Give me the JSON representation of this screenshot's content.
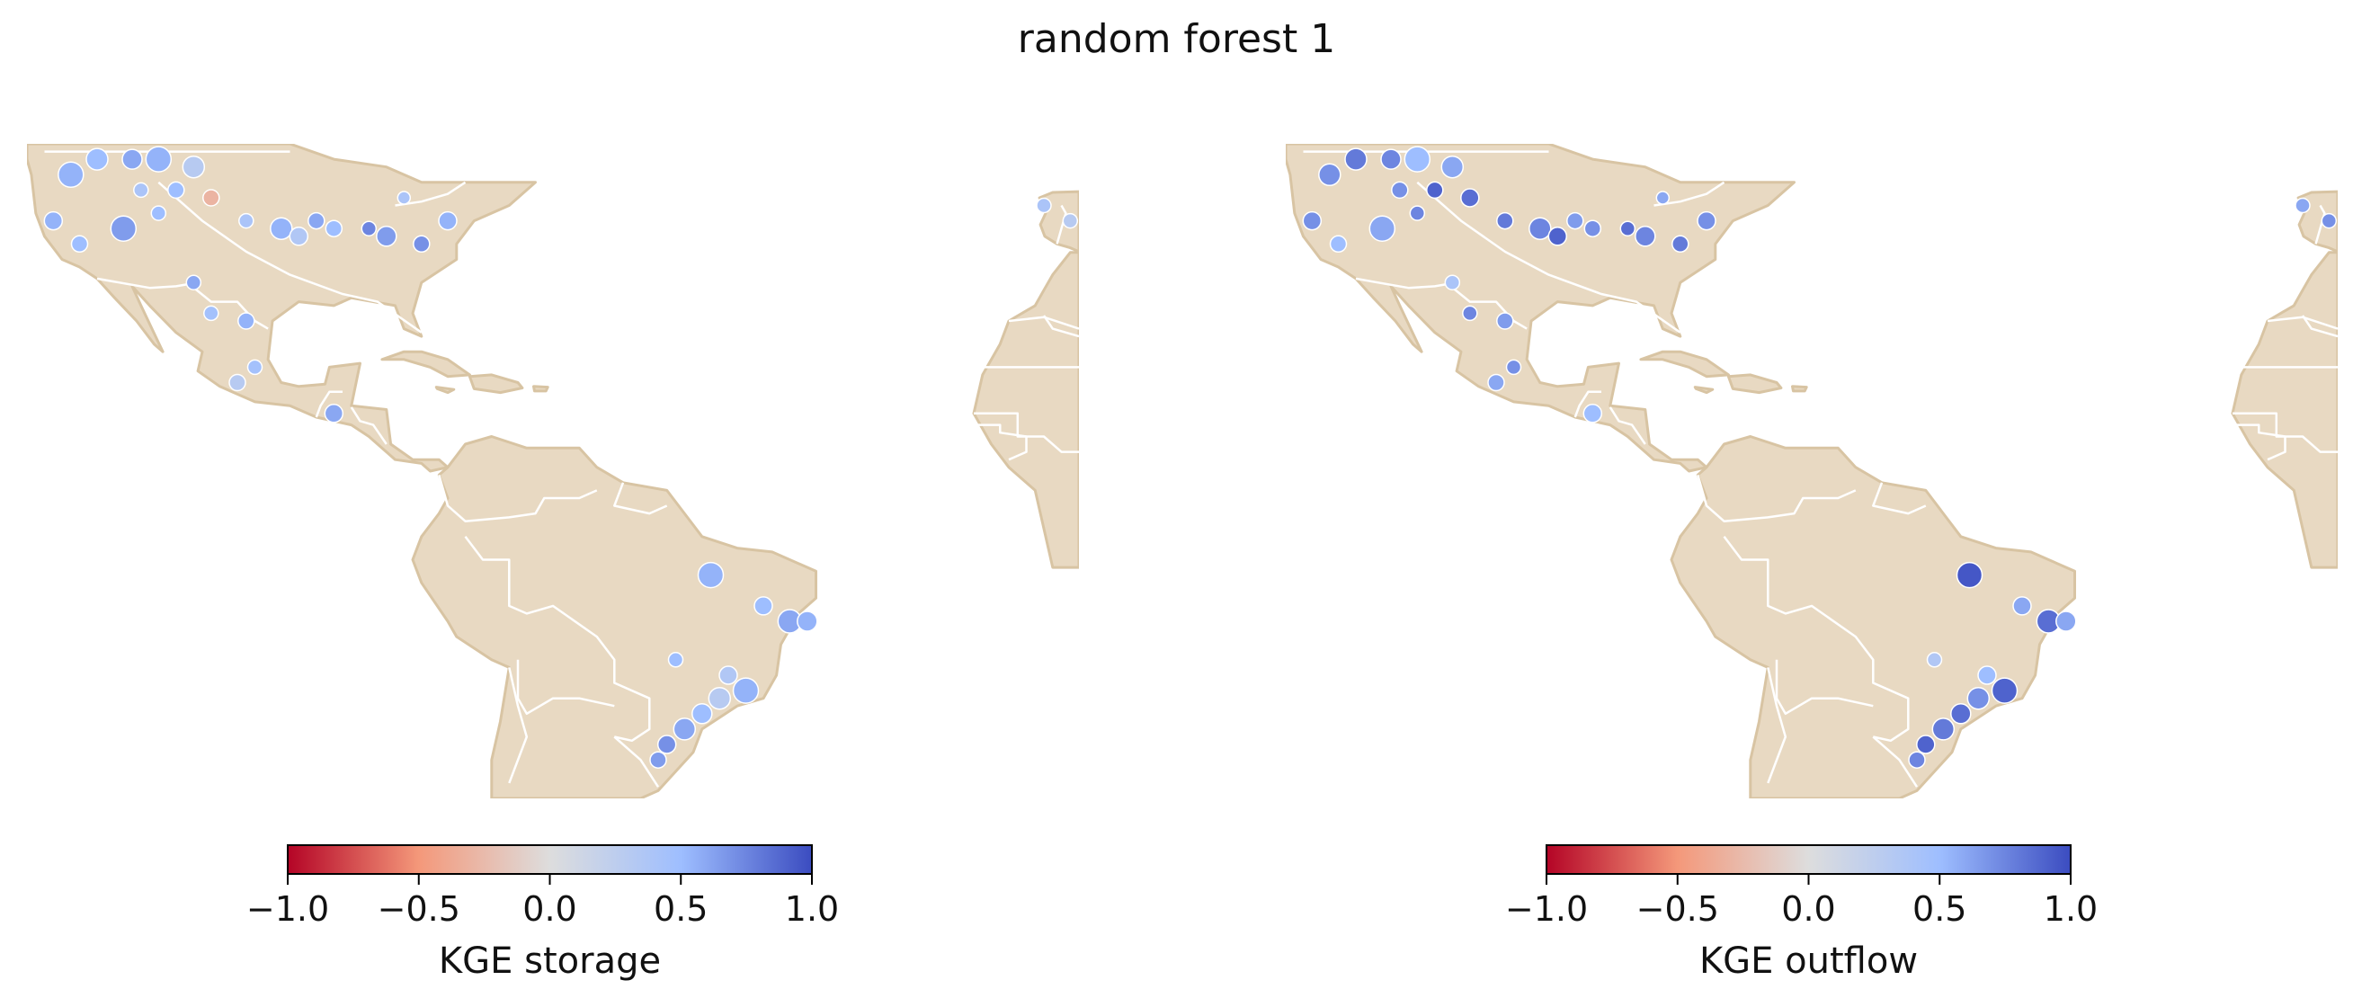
{
  "chart_data": {
    "type": "scatter",
    "title": "random forest 1",
    "panels": [
      {
        "colorbar_label": "KGE storage",
        "colorbar_range": [
          -1.0,
          1.0
        ],
        "colorbar_ticks": [
          "−1.0",
          "−0.5",
          "0.0",
          "0.5",
          "1.0"
        ],
        "colormap": "coolwarm",
        "x_unit": "longitude",
        "y_unit": "latitude",
        "xlim": [
          -125,
          -5
        ],
        "ylim": [
          -35,
          50
        ],
        "points": [
          {
            "lon": -120,
            "lat": 46,
            "v": 0.55,
            "s": 14
          },
          {
            "lon": -117,
            "lat": 48,
            "v": 0.5,
            "s": 12
          },
          {
            "lon": -113,
            "lat": 48,
            "v": 0.6,
            "s": 11
          },
          {
            "lon": -110,
            "lat": 48,
            "v": 0.55,
            "s": 14
          },
          {
            "lon": -106,
            "lat": 47,
            "v": 0.3,
            "s": 12
          },
          {
            "lon": -104,
            "lat": 43,
            "v": -0.3,
            "s": 9
          },
          {
            "lon": -112,
            "lat": 44,
            "v": 0.4,
            "s": 8
          },
          {
            "lon": -108,
            "lat": 44,
            "v": 0.5,
            "s": 9
          },
          {
            "lon": -122,
            "lat": 40,
            "v": 0.55,
            "s": 10
          },
          {
            "lon": -119,
            "lat": 37,
            "v": 0.5,
            "s": 9
          },
          {
            "lon": -114,
            "lat": 39,
            "v": 0.65,
            "s": 14
          },
          {
            "lon": -110,
            "lat": 41,
            "v": 0.5,
            "s": 8
          },
          {
            "lon": -100,
            "lat": 40,
            "v": 0.4,
            "s": 8
          },
          {
            "lon": -96,
            "lat": 39,
            "v": 0.55,
            "s": 12
          },
          {
            "lon": -94,
            "lat": 38,
            "v": 0.35,
            "s": 10
          },
          {
            "lon": -92,
            "lat": 40,
            "v": 0.6,
            "s": 9
          },
          {
            "lon": -90,
            "lat": 39,
            "v": 0.5,
            "s": 9
          },
          {
            "lon": -86,
            "lat": 39,
            "v": 0.75,
            "s": 8
          },
          {
            "lon": -84,
            "lat": 38,
            "v": 0.65,
            "s": 11
          },
          {
            "lon": -80,
            "lat": 37,
            "v": 0.7,
            "s": 9
          },
          {
            "lon": -77,
            "lat": 40,
            "v": 0.55,
            "s": 10
          },
          {
            "lon": -82,
            "lat": 43,
            "v": 0.4,
            "s": 7
          },
          {
            "lon": -106,
            "lat": 32,
            "v": 0.6,
            "s": 8
          },
          {
            "lon": -104,
            "lat": 28,
            "v": 0.45,
            "s": 8
          },
          {
            "lon": -100,
            "lat": 27,
            "v": 0.55,
            "s": 9
          },
          {
            "lon": -99,
            "lat": 21,
            "v": 0.45,
            "s": 8
          },
          {
            "lon": -101,
            "lat": 19,
            "v": 0.3,
            "s": 9
          },
          {
            "lon": -90,
            "lat": 15,
            "v": 0.6,
            "s": 10
          },
          {
            "lon": -47,
            "lat": -6,
            "v": 0.55,
            "s": 14
          },
          {
            "lon": -41,
            "lat": -10,
            "v": 0.5,
            "s": 10
          },
          {
            "lon": -38,
            "lat": -12,
            "v": 0.6,
            "s": 13
          },
          {
            "lon": -36,
            "lat": -12,
            "v": 0.55,
            "s": 11
          },
          {
            "lon": -51,
            "lat": -17,
            "v": 0.5,
            "s": 8
          },
          {
            "lon": -45,
            "lat": -19,
            "v": 0.35,
            "s": 10
          },
          {
            "lon": -43,
            "lat": -21,
            "v": 0.55,
            "s": 14
          },
          {
            "lon": -46,
            "lat": -22,
            "v": 0.3,
            "s": 12
          },
          {
            "lon": -48,
            "lat": -24,
            "v": 0.5,
            "s": 11
          },
          {
            "lon": -50,
            "lat": -26,
            "v": 0.6,
            "s": 12
          },
          {
            "lon": -52,
            "lat": -28,
            "v": 0.7,
            "s": 10
          },
          {
            "lon": -53,
            "lat": -30,
            "v": 0.65,
            "s": 9
          },
          {
            "lon": -9,
            "lat": 42,
            "v": 0.4,
            "s": 8
          },
          {
            "lon": -6,
            "lat": 40,
            "v": 0.3,
            "s": 8
          }
        ]
      },
      {
        "colorbar_label": "KGE outflow",
        "colorbar_range": [
          -1.0,
          1.0
        ],
        "colorbar_ticks": [
          "−1.0",
          "−0.5",
          "0.0",
          "0.5",
          "1.0"
        ],
        "colormap": "coolwarm",
        "x_unit": "longitude",
        "y_unit": "latitude",
        "xlim": [
          -125,
          -5
        ],
        "ylim": [
          -35,
          50
        ],
        "points": [
          {
            "lon": -120,
            "lat": 46,
            "v": 0.7,
            "s": 12
          },
          {
            "lon": -117,
            "lat": 48,
            "v": 0.8,
            "s": 12
          },
          {
            "lon": -113,
            "lat": 48,
            "v": 0.75,
            "s": 11
          },
          {
            "lon": -110,
            "lat": 48,
            "v": 0.5,
            "s": 14
          },
          {
            "lon": -106,
            "lat": 47,
            "v": 0.6,
            "s": 12
          },
          {
            "lon": -104,
            "lat": 43,
            "v": 0.85,
            "s": 10
          },
          {
            "lon": -112,
            "lat": 44,
            "v": 0.7,
            "s": 9
          },
          {
            "lon": -108,
            "lat": 44,
            "v": 0.9,
            "s": 9
          },
          {
            "lon": -122,
            "lat": 40,
            "v": 0.7,
            "s": 10
          },
          {
            "lon": -119,
            "lat": 37,
            "v": 0.5,
            "s": 9
          },
          {
            "lon": -114,
            "lat": 39,
            "v": 0.6,
            "s": 14
          },
          {
            "lon": -110,
            "lat": 41,
            "v": 0.75,
            "s": 8
          },
          {
            "lon": -100,
            "lat": 40,
            "v": 0.8,
            "s": 9
          },
          {
            "lon": -96,
            "lat": 39,
            "v": 0.75,
            "s": 12
          },
          {
            "lon": -94,
            "lat": 38,
            "v": 0.9,
            "s": 10
          },
          {
            "lon": -92,
            "lat": 40,
            "v": 0.65,
            "s": 9
          },
          {
            "lon": -90,
            "lat": 39,
            "v": 0.7,
            "s": 9
          },
          {
            "lon": -86,
            "lat": 39,
            "v": 0.85,
            "s": 8
          },
          {
            "lon": -84,
            "lat": 38,
            "v": 0.75,
            "s": 11
          },
          {
            "lon": -80,
            "lat": 37,
            "v": 0.8,
            "s": 9
          },
          {
            "lon": -77,
            "lat": 40,
            "v": 0.7,
            "s": 10
          },
          {
            "lon": -82,
            "lat": 43,
            "v": 0.6,
            "s": 7
          },
          {
            "lon": -106,
            "lat": 32,
            "v": 0.4,
            "s": 8
          },
          {
            "lon": -104,
            "lat": 28,
            "v": 0.75,
            "s": 8
          },
          {
            "lon": -100,
            "lat": 27,
            "v": 0.65,
            "s": 9
          },
          {
            "lon": -99,
            "lat": 21,
            "v": 0.7,
            "s": 8
          },
          {
            "lon": -101,
            "lat": 19,
            "v": 0.6,
            "s": 9
          },
          {
            "lon": -90,
            "lat": 15,
            "v": 0.5,
            "s": 10
          },
          {
            "lon": -47,
            "lat": -6,
            "v": 0.95,
            "s": 14
          },
          {
            "lon": -41,
            "lat": -10,
            "v": 0.6,
            "s": 10
          },
          {
            "lon": -38,
            "lat": -12,
            "v": 0.85,
            "s": 13
          },
          {
            "lon": -36,
            "lat": -12,
            "v": 0.6,
            "s": 11
          },
          {
            "lon": -51,
            "lat": -17,
            "v": 0.35,
            "s": 8
          },
          {
            "lon": -45,
            "lat": -19,
            "v": 0.5,
            "s": 10
          },
          {
            "lon": -43,
            "lat": -21,
            "v": 0.9,
            "s": 14
          },
          {
            "lon": -46,
            "lat": -22,
            "v": 0.7,
            "s": 12
          },
          {
            "lon": -48,
            "lat": -24,
            "v": 0.85,
            "s": 11
          },
          {
            "lon": -50,
            "lat": -26,
            "v": 0.8,
            "s": 12
          },
          {
            "lon": -52,
            "lat": -28,
            "v": 0.9,
            "s": 10
          },
          {
            "lon": -53,
            "lat": -30,
            "v": 0.75,
            "s": 9
          },
          {
            "lon": -9,
            "lat": 42,
            "v": 0.6,
            "s": 8
          },
          {
            "lon": -6,
            "lat": 40,
            "v": 0.7,
            "s": 8
          }
        ]
      }
    ]
  },
  "colors": {
    "land": "#e8d9c2",
    "land_edge": "#d8c4a3",
    "border": "#ffffff",
    "ocean": "#ffffff",
    "point_edge": "#ffffff"
  }
}
